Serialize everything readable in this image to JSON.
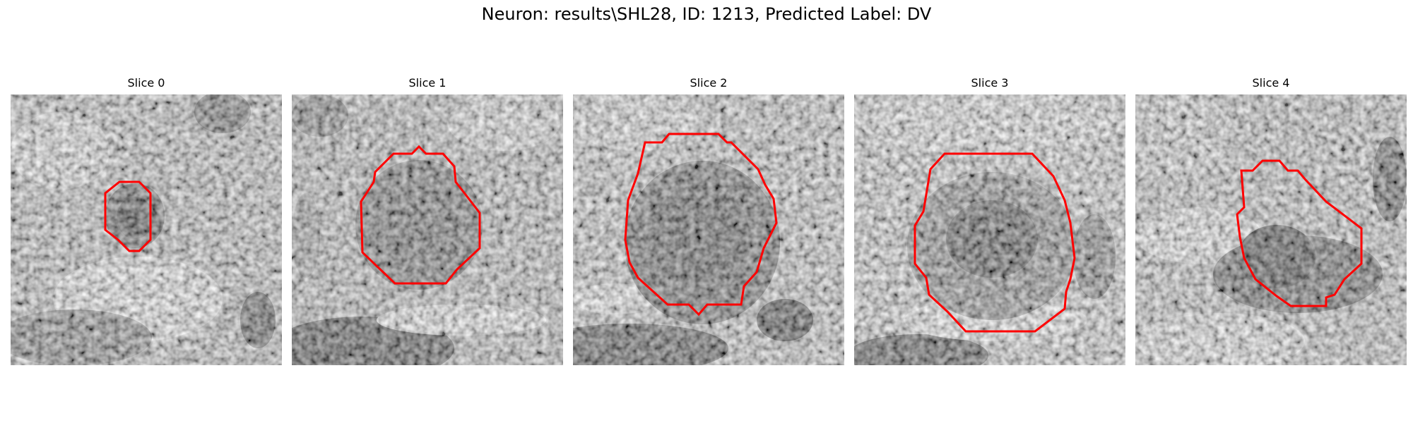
{
  "figure": {
    "title": "Neuron: results\\SHL28, ID: 1213, Predicted Label: DV"
  },
  "panels": [
    {
      "title": "Slice 0"
    },
    {
      "title": "Slice 1"
    },
    {
      "title": "Slice 2"
    },
    {
      "title": "Slice 3"
    },
    {
      "title": "Slice 4"
    }
  ],
  "colors": {
    "contour": "#ff0000",
    "background": "#ffffff"
  }
}
